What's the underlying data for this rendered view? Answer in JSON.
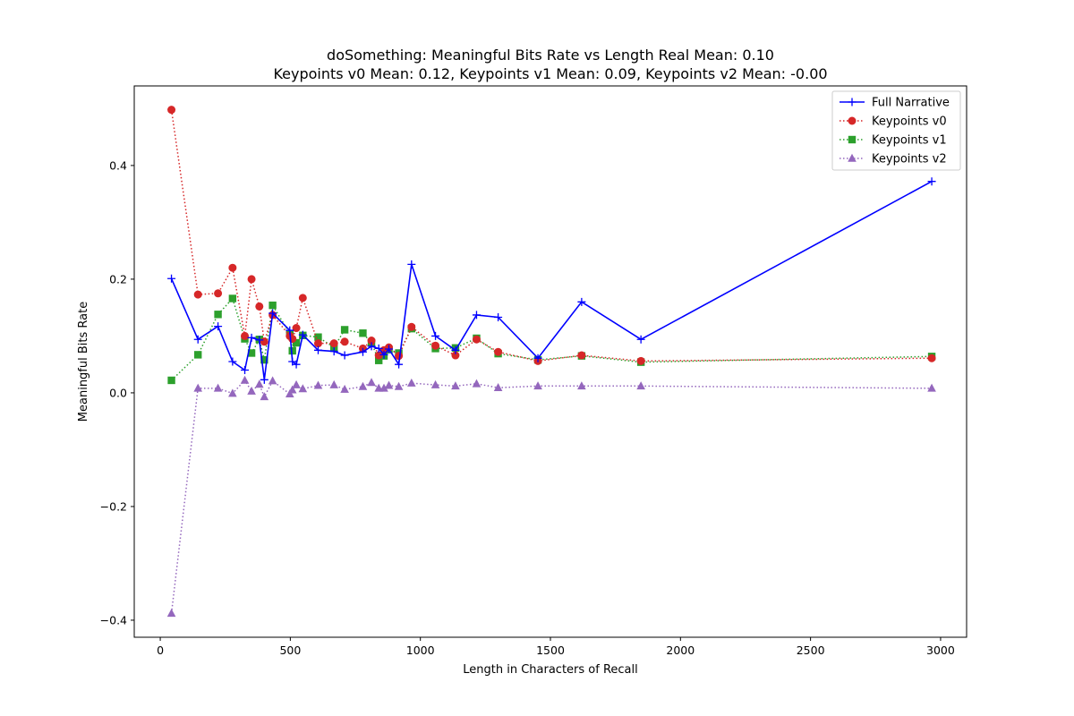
{
  "chart_data": {
    "type": "line",
    "title": "doSomething: Meaningful Bits Rate vs Length Real Mean: 0.10",
    "subtitle": "Keypoints v0 Mean: 0.12, Keypoints v1 Mean: 0.09, Keypoints v2 Mean: -0.00",
    "xlabel": "Length in Characters of Recall",
    "ylabel": "Meaningful Bits Rate",
    "xlim": [
      -100,
      3100
    ],
    "ylim": [
      -0.43,
      0.54
    ],
    "xticks": [
      0,
      500,
      1000,
      1500,
      2000,
      2500,
      3000
    ],
    "yticks": [
      -0.4,
      -0.2,
      0.0,
      0.2,
      0.4
    ],
    "xtick_labels": [
      "0",
      "500",
      "1000",
      "1500",
      "2000",
      "2500",
      "3000"
    ],
    "ytick_labels": [
      "−0.4",
      "−0.2",
      "0.0",
      "0.2",
      "0.4"
    ],
    "grid": false,
    "legend_position": "top-right",
    "series": [
      {
        "name": "Full Narrative",
        "color": "#0000ff",
        "marker": "plus",
        "linestyle": "solid",
        "x": [
          43,
          145,
          222,
          278,
          325,
          351,
          381,
          400,
          432,
          498,
          508,
          523,
          548,
          607,
          668,
          709,
          779,
          812,
          840,
          860,
          879,
          917,
          966,
          1058,
          1135,
          1216,
          1299,
          1452,
          1620,
          1848,
          2966
        ],
        "y": [
          0.201,
          0.094,
          0.117,
          0.055,
          0.04,
          0.097,
          0.093,
          0.023,
          0.14,
          0.11,
          0.055,
          0.05,
          0.102,
          0.075,
          0.073,
          0.066,
          0.072,
          0.082,
          0.078,
          0.067,
          0.077,
          0.05,
          0.226,
          0.1,
          0.075,
          0.137,
          0.133,
          0.061,
          0.16,
          0.094,
          0.372
        ]
      },
      {
        "name": "Keypoints v0",
        "color": "#d62728",
        "marker": "circle",
        "linestyle": "dotted",
        "x": [
          43,
          145,
          222,
          278,
          325,
          351,
          381,
          400,
          432,
          498,
          508,
          523,
          548,
          607,
          668,
          709,
          779,
          812,
          840,
          860,
          879,
          917,
          966,
          1058,
          1135,
          1216,
          1299,
          1452,
          1620,
          1848,
          2966
        ],
        "y": [
          0.498,
          0.173,
          0.175,
          0.22,
          0.1,
          0.2,
          0.152,
          0.09,
          0.137,
          0.1,
          0.095,
          0.114,
          0.167,
          0.087,
          0.087,
          0.09,
          0.078,
          0.092,
          0.066,
          0.075,
          0.08,
          0.065,
          0.116,
          0.083,
          0.066,
          0.094,
          0.072,
          0.056,
          0.066,
          0.056,
          0.061
        ]
      },
      {
        "name": "Keypoints v1",
        "color": "#2ca02c",
        "marker": "square",
        "linestyle": "dotted",
        "x": [
          43,
          145,
          222,
          278,
          325,
          351,
          381,
          400,
          432,
          498,
          508,
          523,
          548,
          607,
          668,
          709,
          779,
          812,
          840,
          860,
          879,
          917,
          966,
          1058,
          1135,
          1216,
          1299,
          1452,
          1620,
          1848,
          2966
        ],
        "y": [
          0.022,
          0.067,
          0.138,
          0.166,
          0.095,
          0.07,
          0.094,
          0.058,
          0.154,
          0.104,
          0.074,
          0.088,
          0.101,
          0.098,
          0.08,
          0.111,
          0.105,
          0.088,
          0.057,
          0.065,
          0.076,
          0.07,
          0.113,
          0.078,
          0.079,
          0.096,
          0.069,
          0.058,
          0.065,
          0.054,
          0.064
        ]
      },
      {
        "name": "Keypoints v2",
        "color": "#9467bd",
        "marker": "triangle",
        "linestyle": "dotted",
        "x": [
          43,
          145,
          222,
          278,
          325,
          351,
          381,
          400,
          432,
          498,
          508,
          523,
          548,
          607,
          668,
          709,
          779,
          812,
          840,
          860,
          879,
          917,
          966,
          1058,
          1135,
          1216,
          1299,
          1452,
          1620,
          1848,
          2966
        ],
        "y": [
          -0.388,
          0.008,
          0.008,
          -0.001,
          0.022,
          0.003,
          0.015,
          -0.007,
          0.021,
          -0.002,
          0.005,
          0.014,
          0.007,
          0.013,
          0.014,
          0.006,
          0.011,
          0.018,
          0.008,
          0.008,
          0.013,
          0.011,
          0.017,
          0.014,
          0.012,
          0.016,
          0.009,
          0.012,
          0.012,
          0.012,
          0.008
        ]
      }
    ]
  }
}
